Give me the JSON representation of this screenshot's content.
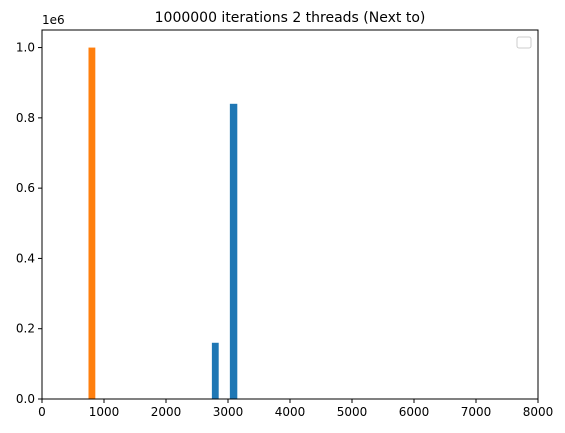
{
  "chart_data": {
    "type": "bar",
    "title": "1000000 iterations 2 threads (Next to)",
    "xlabel": "",
    "ylabel": "",
    "y_offset_label": "1e6",
    "xlim": [
      0,
      8000
    ],
    "ylim": [
      0,
      1.05
    ],
    "x_ticks": [
      0,
      1000,
      2000,
      3000,
      4000,
      5000,
      6000,
      7000,
      8000
    ],
    "x_tick_labels": [
      "0",
      "1000",
      "2000",
      "3000",
      "4000",
      "5000",
      "6000",
      "7000",
      "8000"
    ],
    "y_ticks": [
      0,
      0.2,
      0.4,
      0.6,
      0.8,
      1.0
    ],
    "y_tick_labels": [
      "0.0",
      "0.2",
      "0.4",
      "0.6",
      "0.8",
      "1.0"
    ],
    "grid": false,
    "legend": {
      "position": "top-right",
      "entries": []
    },
    "series": [
      {
        "color": "#ff7f0e",
        "bars": [
          {
            "x_start": 750,
            "x_end": 860,
            "value": 1.0
          }
        ]
      },
      {
        "color": "#1f77b4",
        "bars": [
          {
            "x_start": 2740,
            "x_end": 2850,
            "value": 0.16
          },
          {
            "x_start": 3030,
            "x_end": 3150,
            "value": 0.84
          }
        ]
      }
    ]
  }
}
